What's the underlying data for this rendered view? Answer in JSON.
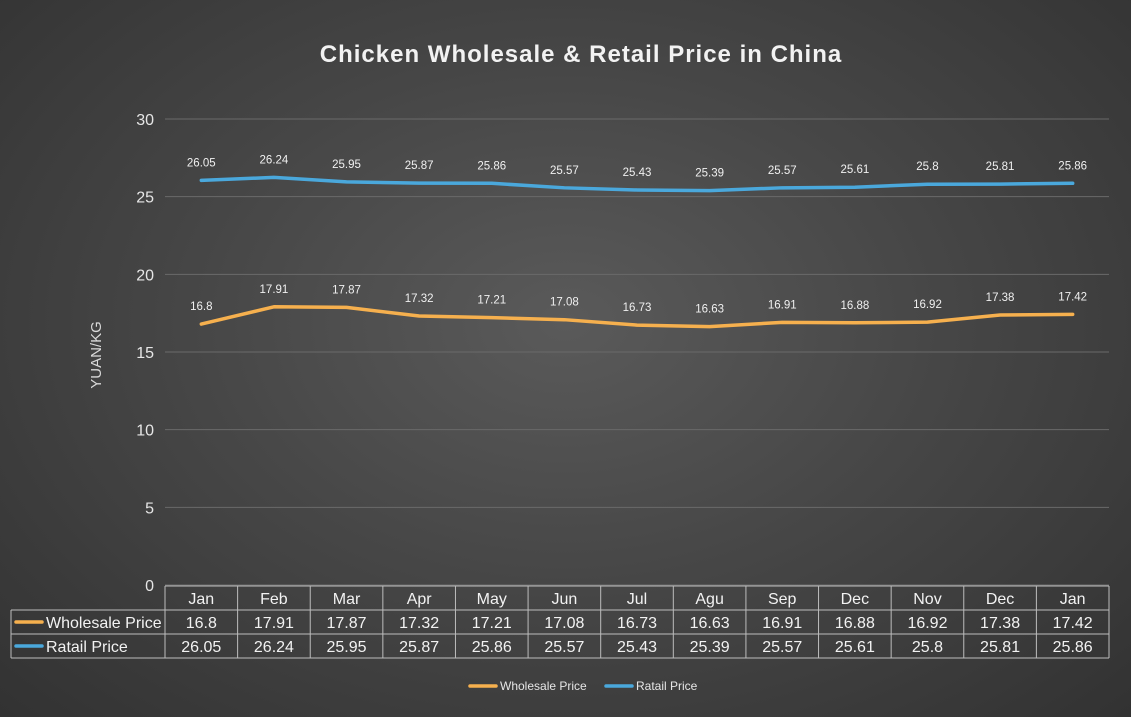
{
  "chart_data": {
    "type": "line",
    "title": "Chicken Wholesale & Retail Price in China",
    "ylabel": "YUAN/KG",
    "xlabel": "",
    "ylim": [
      0,
      30
    ],
    "yticks": [
      0,
      5,
      10,
      15,
      20,
      25,
      30
    ],
    "grid": true,
    "legend_position": "bottom",
    "data_table": true,
    "categories": [
      "Jan",
      "Feb",
      "Mar",
      "Apr",
      "May",
      "Jun",
      "Jul",
      "Agu",
      "Sep",
      "Dec",
      "Nov",
      "Dec",
      "Jan"
    ],
    "series": [
      {
        "name": "Wholesale Price",
        "color": "#f6b04e",
        "values": [
          16.8,
          17.91,
          17.87,
          17.32,
          17.21,
          17.08,
          16.73,
          16.63,
          16.91,
          16.88,
          16.92,
          17.38,
          17.42
        ]
      },
      {
        "name": "Ratail Price",
        "color": "#4aa8dc",
        "values": [
          26.05,
          26.24,
          25.95,
          25.87,
          25.86,
          25.57,
          25.43,
          25.39,
          25.57,
          25.61,
          25.8,
          25.81,
          25.86
        ]
      }
    ]
  }
}
